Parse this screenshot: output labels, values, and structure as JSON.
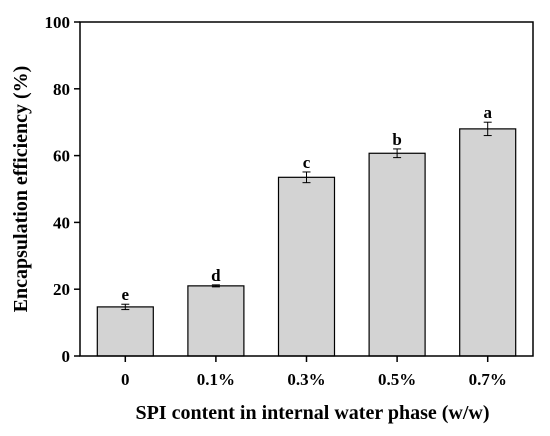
{
  "chart_data": {
    "type": "bar",
    "categories": [
      "0",
      "0.1%",
      "0.3%",
      "0.5%",
      "0.7%"
    ],
    "values": [
      14.7,
      21.0,
      53.5,
      60.7,
      68.0
    ],
    "errors": [
      0.8,
      0.3,
      1.6,
      1.3,
      2.0
    ],
    "significance_letters": [
      "e",
      "d",
      "c",
      "b",
      "a"
    ],
    "xlabel": "SPI content in internal water phase (w/w)",
    "ylabel": "Encapsulation efficiency (%)",
    "ylim": [
      0,
      100
    ],
    "yticks": [
      0,
      20,
      40,
      60,
      80,
      100
    ],
    "grid": false,
    "bar_color": "#d3d3d3",
    "bar_edge_color": "#000000"
  }
}
